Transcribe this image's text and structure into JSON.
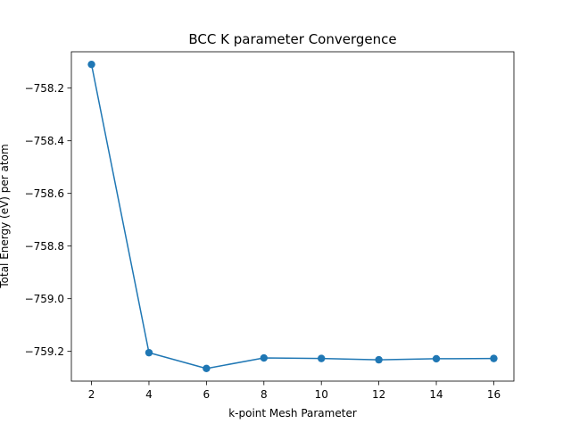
{
  "chart_data": {
    "type": "line",
    "title": "BCC K parameter Convergence",
    "xlabel": "k-point Mesh Parameter",
    "ylabel": "Total Energy (eV) per atom",
    "x": [
      2,
      4,
      6,
      8,
      10,
      12,
      14,
      16
    ],
    "series": [
      {
        "values": [
          -758.11,
          -759.205,
          -759.265,
          -759.225,
          -759.227,
          -759.232,
          -759.228,
          -759.227
        ],
        "color": "#1f77b4",
        "marker": "circle"
      }
    ],
    "xlim": [
      1.3,
      16.7
    ],
    "ylim": [
      -759.313,
      -758.062
    ],
    "xticks": [
      2,
      4,
      6,
      8,
      10,
      12,
      14,
      16
    ],
    "xtick_labels": [
      "2",
      "4",
      "6",
      "8",
      "10",
      "12",
      "14",
      "16"
    ],
    "yticks": [
      -759.2,
      -759.0,
      -758.8,
      -758.6,
      -758.4,
      -758.2
    ],
    "ytick_labels": [
      "−759.2",
      "−759.0",
      "−758.8",
      "−758.6",
      "−758.4",
      "−758.2"
    ],
    "grid": false,
    "legend": "none"
  }
}
